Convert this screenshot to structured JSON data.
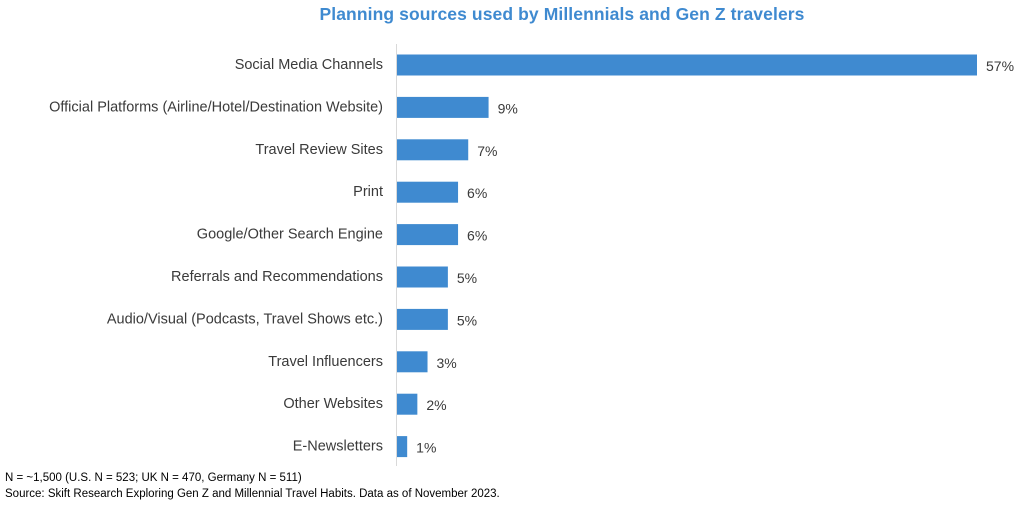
{
  "chart_data": {
    "type": "bar",
    "orientation": "horizontal",
    "title": "Planning sources used by Millennials and Gen Z travelers",
    "categories": [
      "Social Media Channels",
      "Official Platforms (Airline/Hotel/Destination Website)",
      "Travel Review Sites",
      "Print",
      "Google/Other Search Engine",
      "Referrals and Recommendations",
      "Audio/Visual (Podcasts, Travel Shows etc.)",
      "Travel Influencers",
      "Other Websites",
      "E-Newsletters"
    ],
    "values": [
      57,
      9,
      7,
      6,
      6,
      5,
      5,
      3,
      2,
      1
    ],
    "value_labels": [
      "57%",
      "9%",
      "7%",
      "6%",
      "6%",
      "5%",
      "5%",
      "3%",
      "2%",
      "1%"
    ],
    "unit": "%",
    "xlim": [
      0,
      57
    ],
    "grid": false,
    "legend": "none",
    "bar_color": "#3f8ad0"
  },
  "footnotes": {
    "sample": "N = ~1,500 (U.S. N = 523; UK N = 470, Germany N = 511)",
    "source": "Source: Skift Research Exploring Gen Z and Millennial Travel Habits. Data as of November 2023."
  }
}
